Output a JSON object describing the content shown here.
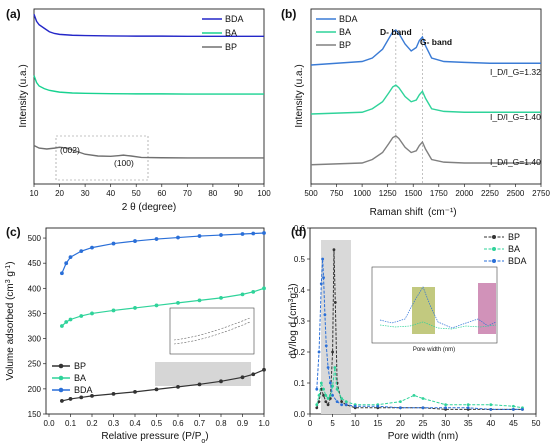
{
  "colors": {
    "BDA": "#2427c8",
    "BA": "#18d290",
    "BP": "#707070",
    "BP_pore": "#333333",
    "BA_pore": "#2fd39a",
    "BDA_pore": "#2a6fd8",
    "raman_BDA": "#3a7bd5",
    "raman_BA": "#2fd39a",
    "raman_BP": "#808080",
    "highlight_gray": "#c8c8c8",
    "highlight_olive": "#9aa52a",
    "highlight_magenta": "#b24a8a"
  },
  "chart_data": [
    {
      "id": "a",
      "type": "line",
      "panel_label": "(a)",
      "xlabel": "2 θ (degree)",
      "ylabel": "Intensity (u.a.)",
      "xlim": [
        10,
        100
      ],
      "xticks": [
        "10",
        "20",
        "30",
        "40",
        "50",
        "60",
        "70",
        "80",
        "90",
        "100"
      ],
      "legend": [
        "BDA",
        "BA",
        "BP"
      ],
      "legend_position": "top-right",
      "annotations": [
        "(002)",
        "(100)"
      ],
      "series": [
        {
          "name": "BDA",
          "x": [
            10,
            11,
            12,
            14,
            16,
            18,
            20,
            25,
            30,
            40,
            50,
            60,
            70,
            80,
            90,
            100
          ],
          "y": [
            0.97,
            0.93,
            0.91,
            0.89,
            0.87,
            0.86,
            0.855,
            0.85,
            0.848,
            0.846,
            0.845,
            0.845,
            0.844,
            0.844,
            0.844,
            0.844
          ]
        },
        {
          "name": "BA",
          "x": [
            10,
            11,
            12,
            14,
            16,
            18,
            20,
            25,
            30,
            40,
            50,
            60,
            70,
            80,
            90,
            100
          ],
          "y": [
            0.62,
            0.58,
            0.56,
            0.545,
            0.535,
            0.53,
            0.525,
            0.52,
            0.518,
            0.516,
            0.515,
            0.515,
            0.514,
            0.514,
            0.514,
            0.514
          ]
        },
        {
          "name": "BP",
          "x": [
            10,
            12,
            15,
            18,
            20,
            23,
            26,
            30,
            35,
            40,
            43,
            45,
            48,
            52,
            60,
            70,
            80,
            90,
            100
          ],
          "y": [
            0.22,
            0.205,
            0.2,
            0.205,
            0.21,
            0.205,
            0.19,
            0.17,
            0.16,
            0.158,
            0.162,
            0.165,
            0.16,
            0.152,
            0.15,
            0.149,
            0.149,
            0.149,
            0.149
          ]
        }
      ]
    },
    {
      "id": "b",
      "type": "line",
      "panel_label": "(b)",
      "xlabel": "Raman shift",
      "xlabel_unit": "(cm⁻¹)",
      "ylabel": "Intensity (u.a.)",
      "xlim": [
        500,
        2750
      ],
      "xticks": [
        "500",
        "750",
        "1000",
        "1250",
        "1500",
        "1750",
        "2000",
        "2250",
        "2500",
        "2750"
      ],
      "legend": [
        "BDA",
        "BA",
        "BP"
      ],
      "legend_position": "top-left",
      "annotations": [
        "D- band",
        "G- band"
      ],
      "ratio_labels": [
        "I_D/I_G=1.32",
        "I_D/I_G=1.40",
        "I_D/I_G=1.40"
      ],
      "series": [
        {
          "name": "BDA",
          "x": [
            500,
            750,
            1000,
            1100,
            1200,
            1260,
            1300,
            1330,
            1360,
            1420,
            1480,
            1530,
            1560,
            1590,
            1620,
            1680,
            1800,
            2000,
            2250,
            2500,
            2750
          ],
          "y": [
            0.68,
            0.69,
            0.7,
            0.72,
            0.77,
            0.83,
            0.87,
            0.88,
            0.86,
            0.8,
            0.76,
            0.78,
            0.82,
            0.84,
            0.79,
            0.72,
            0.7,
            0.695,
            0.69,
            0.69,
            0.69
          ]
        },
        {
          "name": "BA",
          "x": [
            500,
            750,
            1000,
            1100,
            1200,
            1260,
            1300,
            1330,
            1360,
            1420,
            1480,
            1530,
            1560,
            1590,
            1620,
            1680,
            1800,
            2000,
            2250,
            2500,
            2750
          ],
          "y": [
            0.4,
            0.405,
            0.41,
            0.43,
            0.47,
            0.52,
            0.555,
            0.565,
            0.55,
            0.5,
            0.47,
            0.48,
            0.51,
            0.53,
            0.49,
            0.43,
            0.415,
            0.41,
            0.41,
            0.41,
            0.41
          ]
        },
        {
          "name": "BP",
          "x": [
            500,
            750,
            1000,
            1100,
            1200,
            1260,
            1300,
            1330,
            1360,
            1420,
            1480,
            1530,
            1560,
            1590,
            1620,
            1680,
            1800,
            2000,
            2250,
            2500,
            2750
          ],
          "y": [
            0.11,
            0.115,
            0.12,
            0.14,
            0.18,
            0.23,
            0.265,
            0.275,
            0.26,
            0.21,
            0.18,
            0.19,
            0.22,
            0.24,
            0.2,
            0.14,
            0.125,
            0.12,
            0.12,
            0.12,
            0.12
          ]
        }
      ]
    },
    {
      "id": "c",
      "type": "line",
      "panel_label": "(c)",
      "xlabel": "Relative pressure (P/P",
      "xlabel_sub": "o",
      "xlabel_end": ")",
      "ylabel": "Volume adsorbed (cm",
      "ylabel_sup1": "3",
      "ylabel_mid": " g",
      "ylabel_sup2": "-1",
      "ylabel_end": ")",
      "xlim": [
        0.0,
        1.0
      ],
      "ylim": [
        150,
        520
      ],
      "xticks": [
        "0.0",
        "0.1",
        "0.2",
        "0.3",
        "0.4",
        "0.5",
        "0.6",
        "0.7",
        "0.8",
        "0.9",
        "1.0"
      ],
      "yticks": [
        "150",
        "200",
        "250",
        "300",
        "350",
        "400",
        "450",
        "500"
      ],
      "legend": [
        "BP",
        "BA",
        "BDA"
      ],
      "legend_position": "lower-left",
      "series": [
        {
          "name": "BP",
          "x": [
            0.06,
            0.1,
            0.15,
            0.2,
            0.3,
            0.4,
            0.5,
            0.6,
            0.7,
            0.8,
            0.9,
            0.95,
            1.0
          ],
          "y": [
            176,
            180,
            183,
            186,
            190,
            194,
            199,
            204,
            209,
            215,
            223,
            229,
            238
          ]
        },
        {
          "name": "BA",
          "x": [
            0.06,
            0.08,
            0.1,
            0.15,
            0.2,
            0.3,
            0.4,
            0.5,
            0.6,
            0.7,
            0.8,
            0.9,
            0.95,
            1.0
          ],
          "y": [
            325,
            333,
            338,
            345,
            350,
            356,
            361,
            366,
            371,
            376,
            381,
            388,
            393,
            400
          ]
        },
        {
          "name": "BDA",
          "x": [
            0.06,
            0.08,
            0.1,
            0.15,
            0.2,
            0.3,
            0.4,
            0.5,
            0.6,
            0.7,
            0.8,
            0.9,
            0.95,
            1.0
          ],
          "y": [
            430,
            450,
            462,
            474,
            481,
            489,
            494,
            498,
            501,
            504,
            506,
            508,
            509,
            510
          ]
        }
      ]
    },
    {
      "id": "d",
      "type": "line",
      "panel_label": "(d)",
      "xlabel": "Pore width (nm)",
      "ylabel": "dV/log d (cm",
      "ylabel_sup1": "3",
      "ylabel_mid": "g",
      "ylabel_sup2": "-1",
      "ylabel_end": ")",
      "xlim": [
        0,
        50
      ],
      "ylim": [
        0.0,
        0.6
      ],
      "xticks": [
        "0",
        "5",
        "10",
        "15",
        "20",
        "25",
        "30",
        "35",
        "40",
        "45",
        "50"
      ],
      "yticks": [
        "0.0",
        "0.1",
        "0.2",
        "0.3",
        "0.4",
        "0.5",
        "0.6"
      ],
      "legend": [
        "BP",
        "BA",
        "BDA"
      ],
      "legend_position": "top-right",
      "inset_xlabel": "Pore width (nm)",
      "series": [
        {
          "name": "BP",
          "x": [
            1.5,
            2,
            2.5,
            3,
            3.5,
            4,
            4.5,
            5,
            5.3,
            5.6,
            6,
            7,
            8,
            10,
            15,
            20,
            25,
            30,
            35,
            40,
            45,
            47
          ],
          "y": [
            0.02,
            0.04,
            0.08,
            0.06,
            0.04,
            0.03,
            0.05,
            0.2,
            0.53,
            0.36,
            0.1,
            0.04,
            0.03,
            0.02,
            0.02,
            0.02,
            0.02,
            0.015,
            0.015,
            0.015,
            0.015,
            0.015
          ]
        },
        {
          "name": "BA",
          "x": [
            1.5,
            2,
            2.5,
            3,
            3.5,
            4,
            4.5,
            5,
            5.5,
            6,
            7,
            8,
            10,
            15,
            20,
            23,
            25,
            30,
            35,
            40,
            45,
            47
          ],
          "y": [
            0.03,
            0.06,
            0.1,
            0.08,
            0.06,
            0.05,
            0.06,
            0.09,
            0.15,
            0.08,
            0.05,
            0.04,
            0.03,
            0.03,
            0.04,
            0.06,
            0.05,
            0.03,
            0.03,
            0.03,
            0.025,
            0.02
          ]
        },
        {
          "name": "BDA",
          "x": [
            1.5,
            2,
            2.5,
            2.8,
            3,
            3.3,
            3.6,
            4,
            4.5,
            5,
            6,
            7,
            8,
            10,
            15,
            20,
            25,
            30,
            35,
            40,
            45,
            47
          ],
          "y": [
            0.08,
            0.2,
            0.42,
            0.5,
            0.44,
            0.32,
            0.22,
            0.15,
            0.1,
            0.06,
            0.04,
            0.03,
            0.03,
            0.025,
            0.025,
            0.02,
            0.02,
            0.02,
            0.02,
            0.015,
            0.015,
            0.015
          ]
        }
      ]
    }
  ]
}
